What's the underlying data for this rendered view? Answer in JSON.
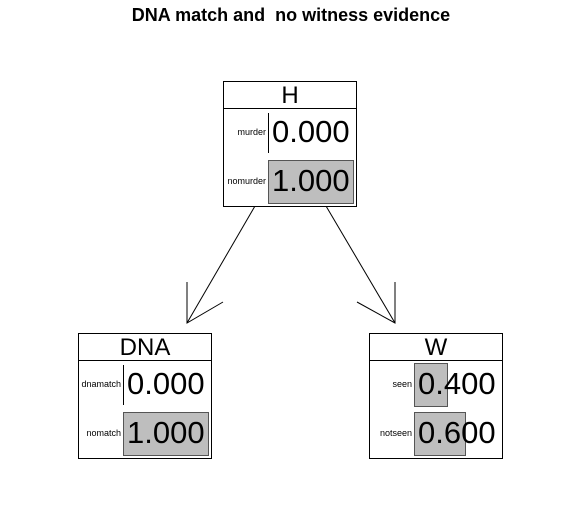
{
  "title": "DNA match and  no witness evidence",
  "nodes": {
    "H": {
      "name": "H",
      "states": [
        {
          "label": "murder",
          "value": "0.000",
          "prob": 0.0
        },
        {
          "label": "nomurder",
          "value": "1.000",
          "prob": 1.0
        }
      ]
    },
    "DNA": {
      "name": "DNA",
      "states": [
        {
          "label": "dnamatch",
          "value": "0.000",
          "prob": 0.0
        },
        {
          "label": "nomatch",
          "value": "1.000",
          "prob": 1.0
        }
      ]
    },
    "W": {
      "name": "W",
      "states": [
        {
          "label": "seen",
          "value": "0.400",
          "prob": 0.4
        },
        {
          "label": "notseen",
          "value": "0.600",
          "prob": 0.6
        }
      ]
    }
  },
  "colors": {
    "bar_fill": "#bebebe",
    "line": "#000000"
  }
}
